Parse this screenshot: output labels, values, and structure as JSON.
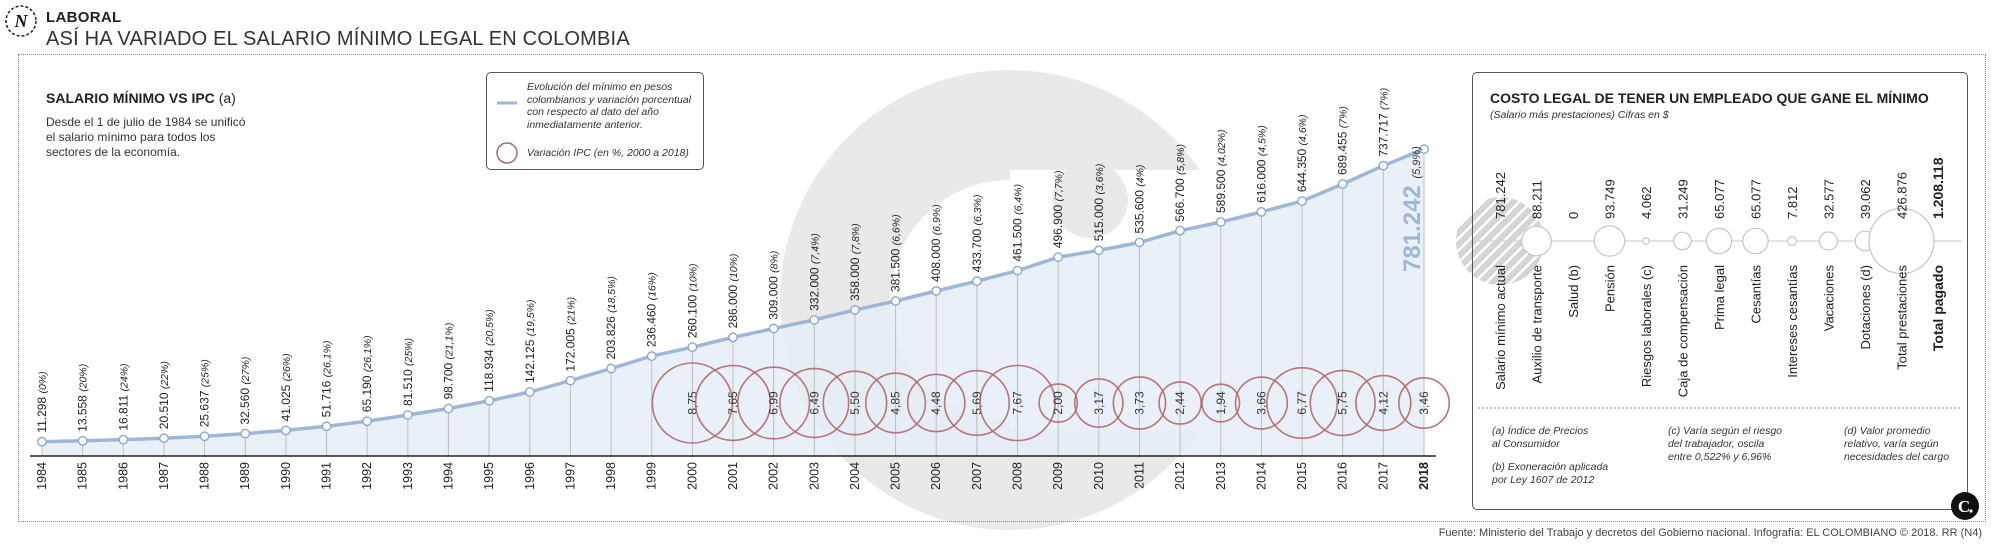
{
  "header": {
    "section": "LABORAL",
    "title": "ASÍ HA VARIADO EL SALARIO MÍNIMO LEGAL EN COLOMBIA"
  },
  "chart": {
    "title": "SALARIO MÍNIMO VS IPC",
    "title_note": "(a)",
    "description": "Desde el 1 de julio de 1984 se unificó el salario mínimo para todos los sectores de la economía."
  },
  "legend": {
    "line_label": "Evolución del mínimo en pesos colombianos y variación porcentual con respecto al dato del año inmediatamente anterior.",
    "circle_label": "Variación IPC (en %, 2000 a 2018)"
  },
  "highlight": {
    "value_label": "781.242",
    "pct_label": "(5,9%)"
  },
  "panel": {
    "title": "COSTO LEGAL DE TENER UN EMPLEADO QUE GANE EL MÍNIMO",
    "subtitle": "(Salario más prestaciones) Cifras en $"
  },
  "notes": {
    "a": "(a) Índice de Precios\nal Consumidor",
    "b": "(b) Exoneración aplicada\npor Ley 1607 de 2012",
    "c": "(c) Varía según el riesgo\ndel trabajador, oscila\nentre 0,522% y 6,96%",
    "d": "(d) Valor promedio\nrelativo, varía según\nnecesidades del cargo"
  },
  "source": "Fuente: Ministerio del Trabajo y decretos del Gobierno nacional. Infografía: EL COLOMBIANO © 2018. RR (N4)",
  "colors": {
    "line": "#9db7d8",
    "area": "#e6edf7",
    "circle": "#b06868",
    "axis": "#222",
    "watermark": "#e6e6e6",
    "highlight": "#9db7d8"
  },
  "chart_data": [
    {
      "type": "line",
      "title": "SALARIO MÍNIMO VS IPC",
      "x": [
        "1984",
        "1985",
        "1986",
        "1987",
        "1988",
        "1989",
        "1990",
        "1991",
        "1992",
        "1993",
        "1994",
        "1995",
        "1996",
        "1997",
        "1998",
        "1999",
        "2000",
        "2001",
        "2002",
        "2003",
        "2004",
        "2005",
        "2006",
        "2007",
        "2008",
        "2009",
        "2010",
        "2011",
        "2012",
        "2013",
        "2014",
        "2015",
        "2016",
        "2017",
        "2018"
      ],
      "series": [
        {
          "values": [
            11298,
            13558,
            16811,
            20510,
            25637,
            32560,
            41025,
            51716,
            65190,
            81510,
            98700,
            118934,
            142125,
            172005,
            203826,
            236460,
            260100,
            286000,
            309000,
            332000,
            358000,
            381500,
            408000,
            433700,
            461500,
            496900,
            515000,
            535600,
            566700,
            589500,
            616000,
            644350,
            689455,
            737717,
            781242
          ],
          "value_labels": [
            "11.298",
            "13.558",
            "16.811",
            "20.510",
            "25.637",
            "32.560",
            "41.025",
            "51.716",
            "65.190",
            "81.510",
            "98.700",
            "118.934",
            "142.125",
            "172.005",
            "203.826",
            "236.460",
            "260.100",
            "286.000",
            "309.000",
            "332.000",
            "358.000",
            "381.500",
            "408.000",
            "433.700",
            "461.500",
            "496.900",
            "515.000",
            "535.600",
            "566.700",
            "589.500",
            "616.000",
            "644.350",
            "689.455",
            "737.717",
            "781.242"
          ],
          "pct_labels": [
            "(0%)",
            "(20%)",
            "(24%)",
            "(22%)",
            "(25%)",
            "(27%)",
            "(26%)",
            "(26,1%)",
            "(26,1%)",
            "(25%)",
            "(21,1%)",
            "(20,5%)",
            "(19,5%)",
            "(21%)",
            "(18,5%)",
            "(16%)",
            "(10%)",
            "(10%)",
            "(8%)",
            "(7,4%)",
            "(7,8%)",
            "(6,6%)",
            "(6,9%)",
            "(6,3%)",
            "(6,4%)",
            "(7,7%)",
            "(3,6%)",
            "(4%)",
            "(5,8%)",
            "(4,02%)",
            "(4,5%)",
            "(4,6%)",
            "(7%)",
            "(7%)",
            "(5,9%)"
          ]
        }
      ],
      "ylim": [
        0,
        800000
      ]
    },
    {
      "type": "bubble",
      "title": "Variación IPC (en %, 2000 a 2018)",
      "x": [
        "2000",
        "2001",
        "2002",
        "2003",
        "2004",
        "2005",
        "2006",
        "2007",
        "2008",
        "2009",
        "2010",
        "2011",
        "2012",
        "2013",
        "2014",
        "2015",
        "2016",
        "2017",
        "2018"
      ],
      "values": [
        8.75,
        7.65,
        6.99,
        6.49,
        5.5,
        4.85,
        4.48,
        5.69,
        7.67,
        2.0,
        3.17,
        3.73,
        2.44,
        1.94,
        3.66,
        6.77,
        5.75,
        4.12,
        3.46
      ],
      "value_labels": [
        "8,75",
        "7,65",
        "6,99",
        "6,49",
        "5,50",
        "4,85",
        "4,48",
        "5,69",
        "7,67",
        "2,00",
        "3,17",
        "3,73",
        "2,44",
        "1,94",
        "3,66",
        "6,77",
        "5,75",
        "4,12",
        "3,46"
      ]
    },
    {
      "type": "bubble",
      "title": "COSTO LEGAL DE TENER UN EMPLEADO QUE GANE EL MÍNIMO",
      "categories": [
        "Salario mínimo actual",
        "Auxilio de transporte",
        "Salud (b)",
        "Pensión",
        "Riesgos laborales (c)",
        "Caja de compensación",
        "Prima legal",
        "Cesantías",
        "Intereses cesantías",
        "Vacaciones",
        "Dotaciones (d)",
        "Total prestaciones",
        "Total pagado"
      ],
      "values": [
        781242,
        88211,
        0,
        93749,
        4062,
        31249,
        65077,
        65077,
        7812,
        32577,
        39062,
        426876,
        1208118
      ],
      "value_labels": [
        "781.242",
        "88.211",
        "0",
        "93.749",
        "4.062",
        "31.249",
        "65.077",
        "65.077",
        "7.812",
        "32.577",
        "39.062",
        "426.876",
        "1.208.118"
      ]
    }
  ]
}
